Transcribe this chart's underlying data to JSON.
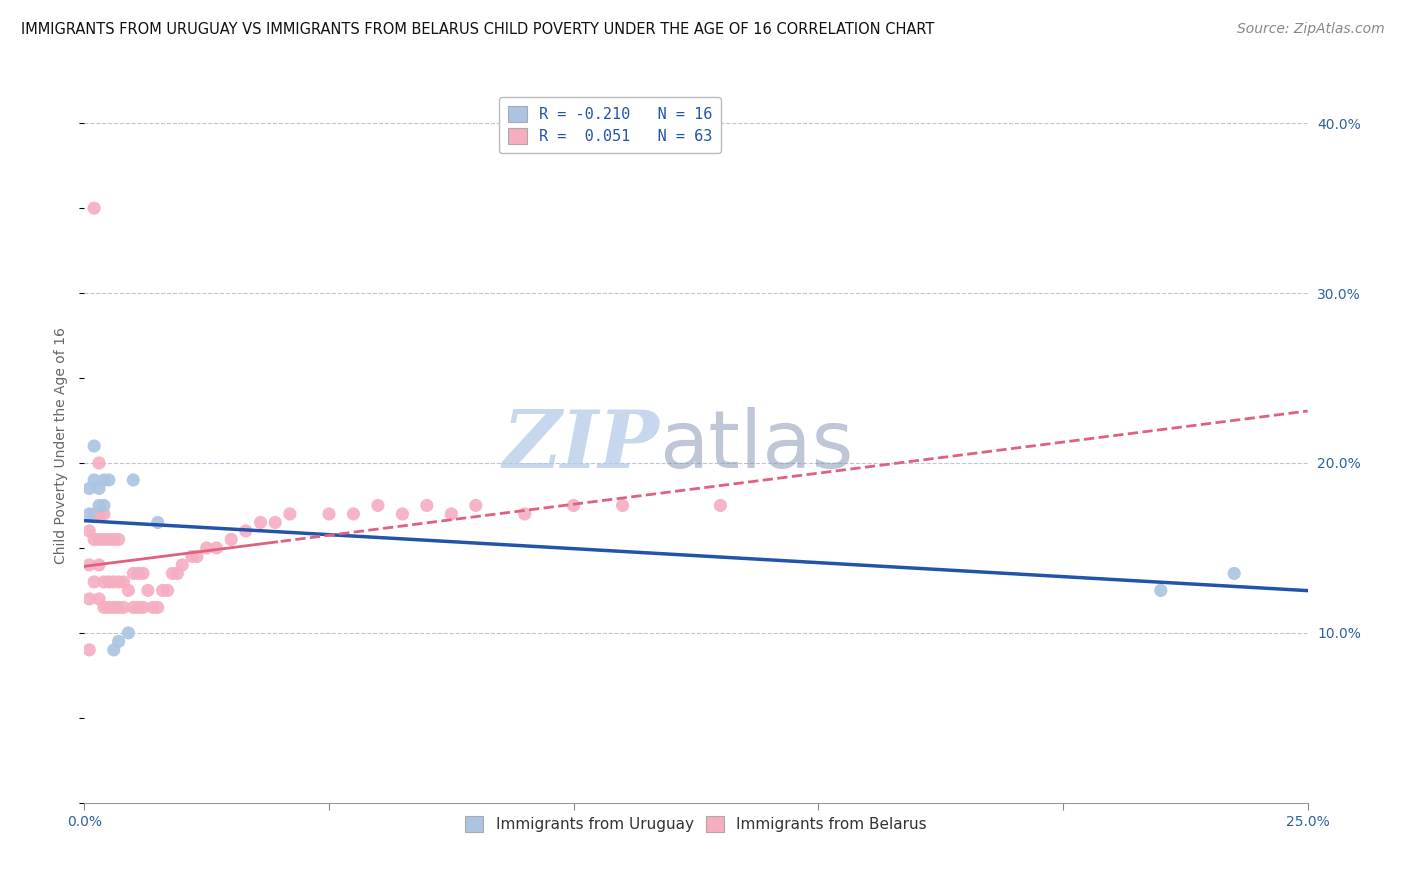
{
  "title": "IMMIGRANTS FROM URUGUAY VS IMMIGRANTS FROM BELARUS CHILD POVERTY UNDER THE AGE OF 16 CORRELATION CHART",
  "source": "Source: ZipAtlas.com",
  "ylabel": "Child Poverty Under the Age of 16",
  "xlim": [
    0,
    0.25
  ],
  "ylim": [
    0,
    0.42
  ],
  "xticks": [
    0.0,
    0.05,
    0.1,
    0.15,
    0.2,
    0.25
  ],
  "yticks": [
    0.0,
    0.1,
    0.2,
    0.3,
    0.4
  ],
  "ytick_labels": [
    "",
    "10.0%",
    "20.0%",
    "30.0%",
    "40.0%"
  ],
  "xtick_labels": [
    "0.0%",
    "",
    "",
    "",
    "",
    "25.0%"
  ],
  "legend_labels": [
    "Immigrants from Uruguay",
    "Immigrants from Belarus"
  ],
  "legend_R": [
    -0.21,
    0.051
  ],
  "legend_N": [
    16,
    63
  ],
  "uruguay_color": "#aac4e2",
  "belarus_color": "#f5adc0",
  "uruguay_line_color": "#2255aa",
  "belarus_line_color": "#e06080",
  "watermark": "ZIPatlas",
  "watermark_color_zip": "#b0c8e8",
  "watermark_color_atlas": "#8090b0",
  "background_color": "#ffffff",
  "grid_color": "#b8c8d8",
  "title_fontsize": 10.5,
  "axis_label_fontsize": 10,
  "tick_fontsize": 10,
  "legend_fontsize": 11,
  "source_fontsize": 10,
  "marker_size": 90,
  "uruguay_x": [
    0.001,
    0.001,
    0.002,
    0.002,
    0.003,
    0.003,
    0.004,
    0.004,
    0.005,
    0.006,
    0.007,
    0.009,
    0.01,
    0.015,
    0.22,
    0.235
  ],
  "uruguay_y": [
    0.17,
    0.185,
    0.19,
    0.21,
    0.175,
    0.185,
    0.175,
    0.19,
    0.19,
    0.09,
    0.095,
    0.1,
    0.19,
    0.165,
    0.125,
    0.135
  ],
  "belarus_x": [
    0.001,
    0.001,
    0.001,
    0.001,
    0.002,
    0.002,
    0.002,
    0.002,
    0.003,
    0.003,
    0.003,
    0.003,
    0.003,
    0.004,
    0.004,
    0.004,
    0.004,
    0.005,
    0.005,
    0.005,
    0.006,
    0.006,
    0.006,
    0.007,
    0.007,
    0.007,
    0.008,
    0.008,
    0.009,
    0.01,
    0.01,
    0.011,
    0.011,
    0.012,
    0.012,
    0.013,
    0.014,
    0.015,
    0.016,
    0.017,
    0.018,
    0.019,
    0.02,
    0.022,
    0.023,
    0.025,
    0.027,
    0.03,
    0.033,
    0.036,
    0.039,
    0.042,
    0.05,
    0.055,
    0.06,
    0.065,
    0.07,
    0.08,
    0.09,
    0.1,
    0.11,
    0.13,
    0.075
  ],
  "belarus_y": [
    0.12,
    0.14,
    0.16,
    0.09,
    0.13,
    0.155,
    0.17,
    0.35,
    0.12,
    0.14,
    0.155,
    0.17,
    0.2,
    0.115,
    0.13,
    0.155,
    0.17,
    0.115,
    0.13,
    0.155,
    0.115,
    0.13,
    0.155,
    0.115,
    0.13,
    0.155,
    0.115,
    0.13,
    0.125,
    0.115,
    0.135,
    0.115,
    0.135,
    0.115,
    0.135,
    0.125,
    0.115,
    0.115,
    0.125,
    0.125,
    0.135,
    0.135,
    0.14,
    0.145,
    0.145,
    0.15,
    0.15,
    0.155,
    0.16,
    0.165,
    0.165,
    0.17,
    0.17,
    0.17,
    0.175,
    0.17,
    0.175,
    0.175,
    0.17,
    0.175,
    0.175,
    0.175,
    0.17
  ],
  "trendline_x_start": 0.0,
  "trendline_x_end": 0.25
}
